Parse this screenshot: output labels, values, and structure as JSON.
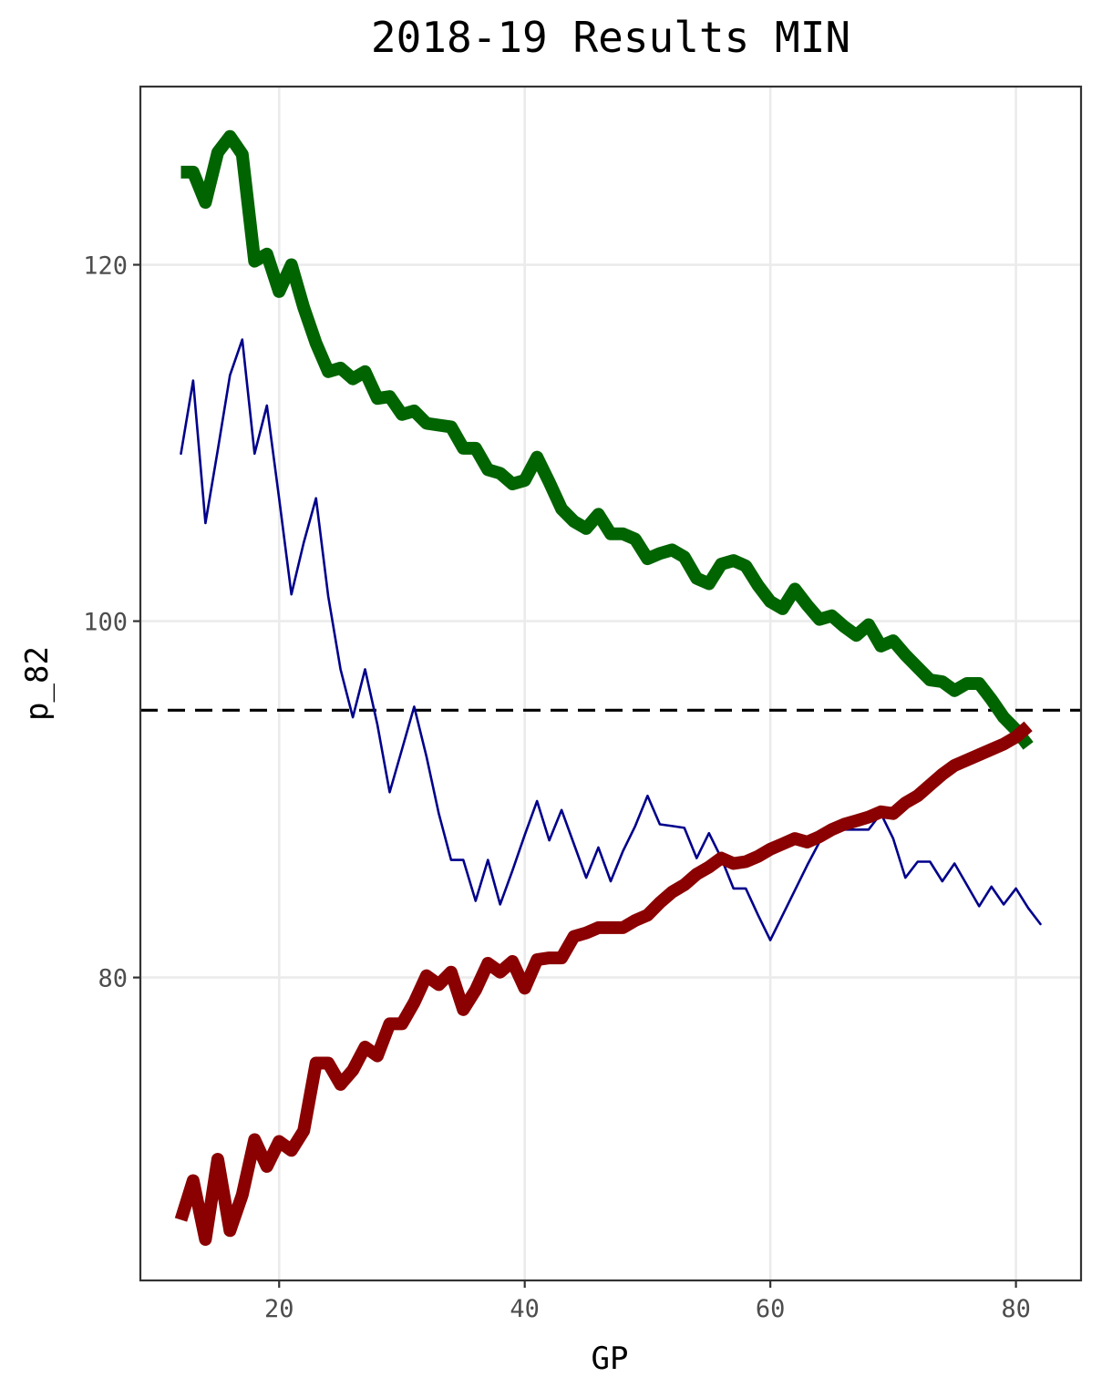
{
  "chart_data": {
    "type": "line",
    "title": "2018-19 Results MIN",
    "xlabel": "GP",
    "ylabel": "p_82",
    "xlim": [
      8.7,
      85.3
    ],
    "ylim": [
      63,
      130
    ],
    "x_ticks": [
      20,
      40,
      60,
      80
    ],
    "y_ticks": [
      80,
      100,
      120
    ],
    "grid": true,
    "reference_line": {
      "y": 95,
      "style": "dashed",
      "color": "#000000"
    },
    "series": [
      {
        "color": "#006400",
        "width": "thick",
        "points": [
          [
            12,
            125.2
          ],
          [
            13,
            125.2
          ],
          [
            14,
            123.5
          ],
          [
            15,
            126.3
          ],
          [
            16,
            127.2
          ],
          [
            17,
            126.2
          ],
          [
            18,
            120.2
          ],
          [
            19,
            120.6
          ],
          [
            20,
            118.5
          ],
          [
            21,
            120
          ],
          [
            22,
            117.6
          ],
          [
            23,
            115.6
          ],
          [
            24,
            114.0
          ],
          [
            25,
            114.2
          ],
          [
            26,
            113.6
          ],
          [
            27,
            114.0
          ],
          [
            28,
            112.5
          ],
          [
            29,
            112.6
          ],
          [
            30,
            111.6
          ],
          [
            31,
            111.8
          ],
          [
            32,
            111.1
          ],
          [
            33,
            111.0
          ],
          [
            34,
            110.9
          ],
          [
            35,
            109.7
          ],
          [
            36,
            109.7
          ],
          [
            37,
            108.5
          ],
          [
            38,
            108.3
          ],
          [
            39,
            107.7
          ],
          [
            40,
            107.9
          ],
          [
            41,
            109.2
          ],
          [
            42,
            107.8
          ],
          [
            43,
            106.3
          ],
          [
            44,
            105.6
          ],
          [
            45,
            105.2
          ],
          [
            46,
            106.0
          ],
          [
            47,
            104.9
          ],
          [
            48,
            104.9
          ],
          [
            49,
            104.6
          ],
          [
            50,
            103.5
          ],
          [
            51,
            103.8
          ],
          [
            52,
            104.0
          ],
          [
            53,
            103.6
          ],
          [
            54,
            102.4
          ],
          [
            55,
            102.1
          ],
          [
            56,
            103.2
          ],
          [
            57,
            103.4
          ],
          [
            58,
            103.1
          ],
          [
            59,
            102.0
          ],
          [
            60,
            101.1
          ],
          [
            61,
            100.7
          ],
          [
            62,
            101.8
          ],
          [
            63,
            100.9
          ],
          [
            64,
            100.1
          ],
          [
            65,
            100.3
          ],
          [
            66,
            99.7
          ],
          [
            67,
            99.2
          ],
          [
            68,
            99.8
          ],
          [
            69,
            98.6
          ],
          [
            70,
            98.9
          ],
          [
            71,
            98.1
          ],
          [
            72,
            97.4
          ],
          [
            73,
            96.7
          ],
          [
            74,
            96.6
          ],
          [
            75,
            96.1
          ],
          [
            76,
            96.5
          ],
          [
            77,
            96.5
          ],
          [
            78,
            95.6
          ],
          [
            79,
            94.6
          ],
          [
            80,
            93.9
          ],
          [
            81,
            93.0
          ]
        ]
      },
      {
        "color": "#00008b",
        "width": "thin",
        "points": [
          [
            12,
            109.4
          ],
          [
            13,
            113.5
          ],
          [
            14,
            105.5
          ],
          [
            15,
            109.6
          ],
          [
            16,
            113.8
          ],
          [
            17,
            115.8
          ],
          [
            18,
            109.4
          ],
          [
            19,
            112.1
          ],
          [
            20,
            106.9
          ],
          [
            21,
            101.5
          ],
          [
            22,
            104.4
          ],
          [
            23,
            106.9
          ],
          [
            24,
            101.4
          ],
          [
            25,
            97.3
          ],
          [
            26,
            94.6
          ],
          [
            27,
            97.3
          ],
          [
            28,
            94.2
          ],
          [
            29,
            90.4
          ],
          [
            30,
            92.8
          ],
          [
            31,
            95.2
          ],
          [
            32,
            92.4
          ],
          [
            33,
            89.2
          ],
          [
            34,
            86.6
          ],
          [
            35,
            86.6
          ],
          [
            36,
            84.3
          ],
          [
            37,
            86.6
          ],
          [
            38,
            84.1
          ],
          [
            39,
            86.0
          ],
          [
            40,
            88.0
          ],
          [
            41,
            89.9
          ],
          [
            42,
            87.7
          ],
          [
            43,
            89.4
          ],
          [
            44,
            87.5
          ],
          [
            45,
            85.6
          ],
          [
            46,
            87.3
          ],
          [
            47,
            85.4
          ],
          [
            48,
            87.1
          ],
          [
            49,
            88.5
          ],
          [
            50,
            90.2
          ],
          [
            51,
            88.6
          ],
          [
            52,
            88.5
          ],
          [
            53,
            88.4
          ],
          [
            54,
            86.7
          ],
          [
            55,
            88.1
          ],
          [
            56,
            86.7
          ],
          [
            57,
            85.0
          ],
          [
            58,
            85.0
          ],
          [
            59,
            83.5
          ],
          [
            60,
            82.1
          ],
          [
            61,
            83.5
          ],
          [
            62,
            84.9
          ],
          [
            63,
            86.3
          ],
          [
            64,
            87.6
          ],
          [
            65,
            88.3
          ],
          [
            66,
            88.3
          ],
          [
            67,
            88.3
          ],
          [
            68,
            88.3
          ],
          [
            69,
            89.2
          ],
          [
            70,
            87.8
          ],
          [
            71,
            85.6
          ],
          [
            72,
            86.5
          ],
          [
            73,
            86.5
          ],
          [
            74,
            85.4
          ],
          [
            75,
            86.4
          ],
          [
            76,
            85.2
          ],
          [
            77,
            84.0
          ],
          [
            78,
            85.1
          ],
          [
            79,
            84.1
          ],
          [
            80,
            85.0
          ],
          [
            81,
            83.9
          ],
          [
            82,
            83.0
          ]
        ]
      },
      {
        "color": "#8b0000",
        "width": "thick",
        "points": [
          [
            12,
            66.4
          ],
          [
            13,
            68.6
          ],
          [
            14,
            65.3
          ],
          [
            15,
            69.8
          ],
          [
            16,
            65.8
          ],
          [
            17,
            67.8
          ],
          [
            18,
            70.9
          ],
          [
            19,
            69.4
          ],
          [
            20,
            70.8
          ],
          [
            21,
            70.3
          ],
          [
            22,
            71.4
          ],
          [
            23,
            75.2
          ],
          [
            24,
            75.2
          ],
          [
            25,
            74.0
          ],
          [
            26,
            74.8
          ],
          [
            27,
            76.1
          ],
          [
            28,
            75.6
          ],
          [
            29,
            77.4
          ],
          [
            30,
            77.4
          ],
          [
            31,
            78.6
          ],
          [
            32,
            80.1
          ],
          [
            33,
            79.6
          ],
          [
            34,
            80.3
          ],
          [
            35,
            78.2
          ],
          [
            36,
            79.3
          ],
          [
            37,
            80.8
          ],
          [
            38,
            80.3
          ],
          [
            39,
            80.9
          ],
          [
            40,
            79.4
          ],
          [
            41,
            81.0
          ],
          [
            42,
            81.1
          ],
          [
            43,
            81.1
          ],
          [
            44,
            82.3
          ],
          [
            45,
            82.5
          ],
          [
            46,
            82.8
          ],
          [
            47,
            82.8
          ],
          [
            48,
            82.8
          ],
          [
            49,
            83.2
          ],
          [
            50,
            83.5
          ],
          [
            51,
            84.2
          ],
          [
            52,
            84.8
          ],
          [
            53,
            85.2
          ],
          [
            54,
            85.8
          ],
          [
            55,
            86.2
          ],
          [
            56,
            86.7
          ],
          [
            57,
            86.4
          ],
          [
            58,
            86.5
          ],
          [
            59,
            86.8
          ],
          [
            60,
            87.2
          ],
          [
            61,
            87.5
          ],
          [
            62,
            87.8
          ],
          [
            63,
            87.6
          ],
          [
            64,
            87.9
          ],
          [
            65,
            88.3
          ],
          [
            66,
            88.6
          ],
          [
            67,
            88.8
          ],
          [
            68,
            89.0
          ],
          [
            69,
            89.3
          ],
          [
            70,
            89.2
          ],
          [
            71,
            89.8
          ],
          [
            72,
            90.2
          ],
          [
            73,
            90.8
          ],
          [
            74,
            91.4
          ],
          [
            75,
            91.9
          ],
          [
            76,
            92.2
          ],
          [
            77,
            92.5
          ],
          [
            78,
            92.8
          ],
          [
            79,
            93.1
          ],
          [
            80,
            93.5
          ],
          [
            81,
            94.1
          ]
        ]
      }
    ]
  }
}
